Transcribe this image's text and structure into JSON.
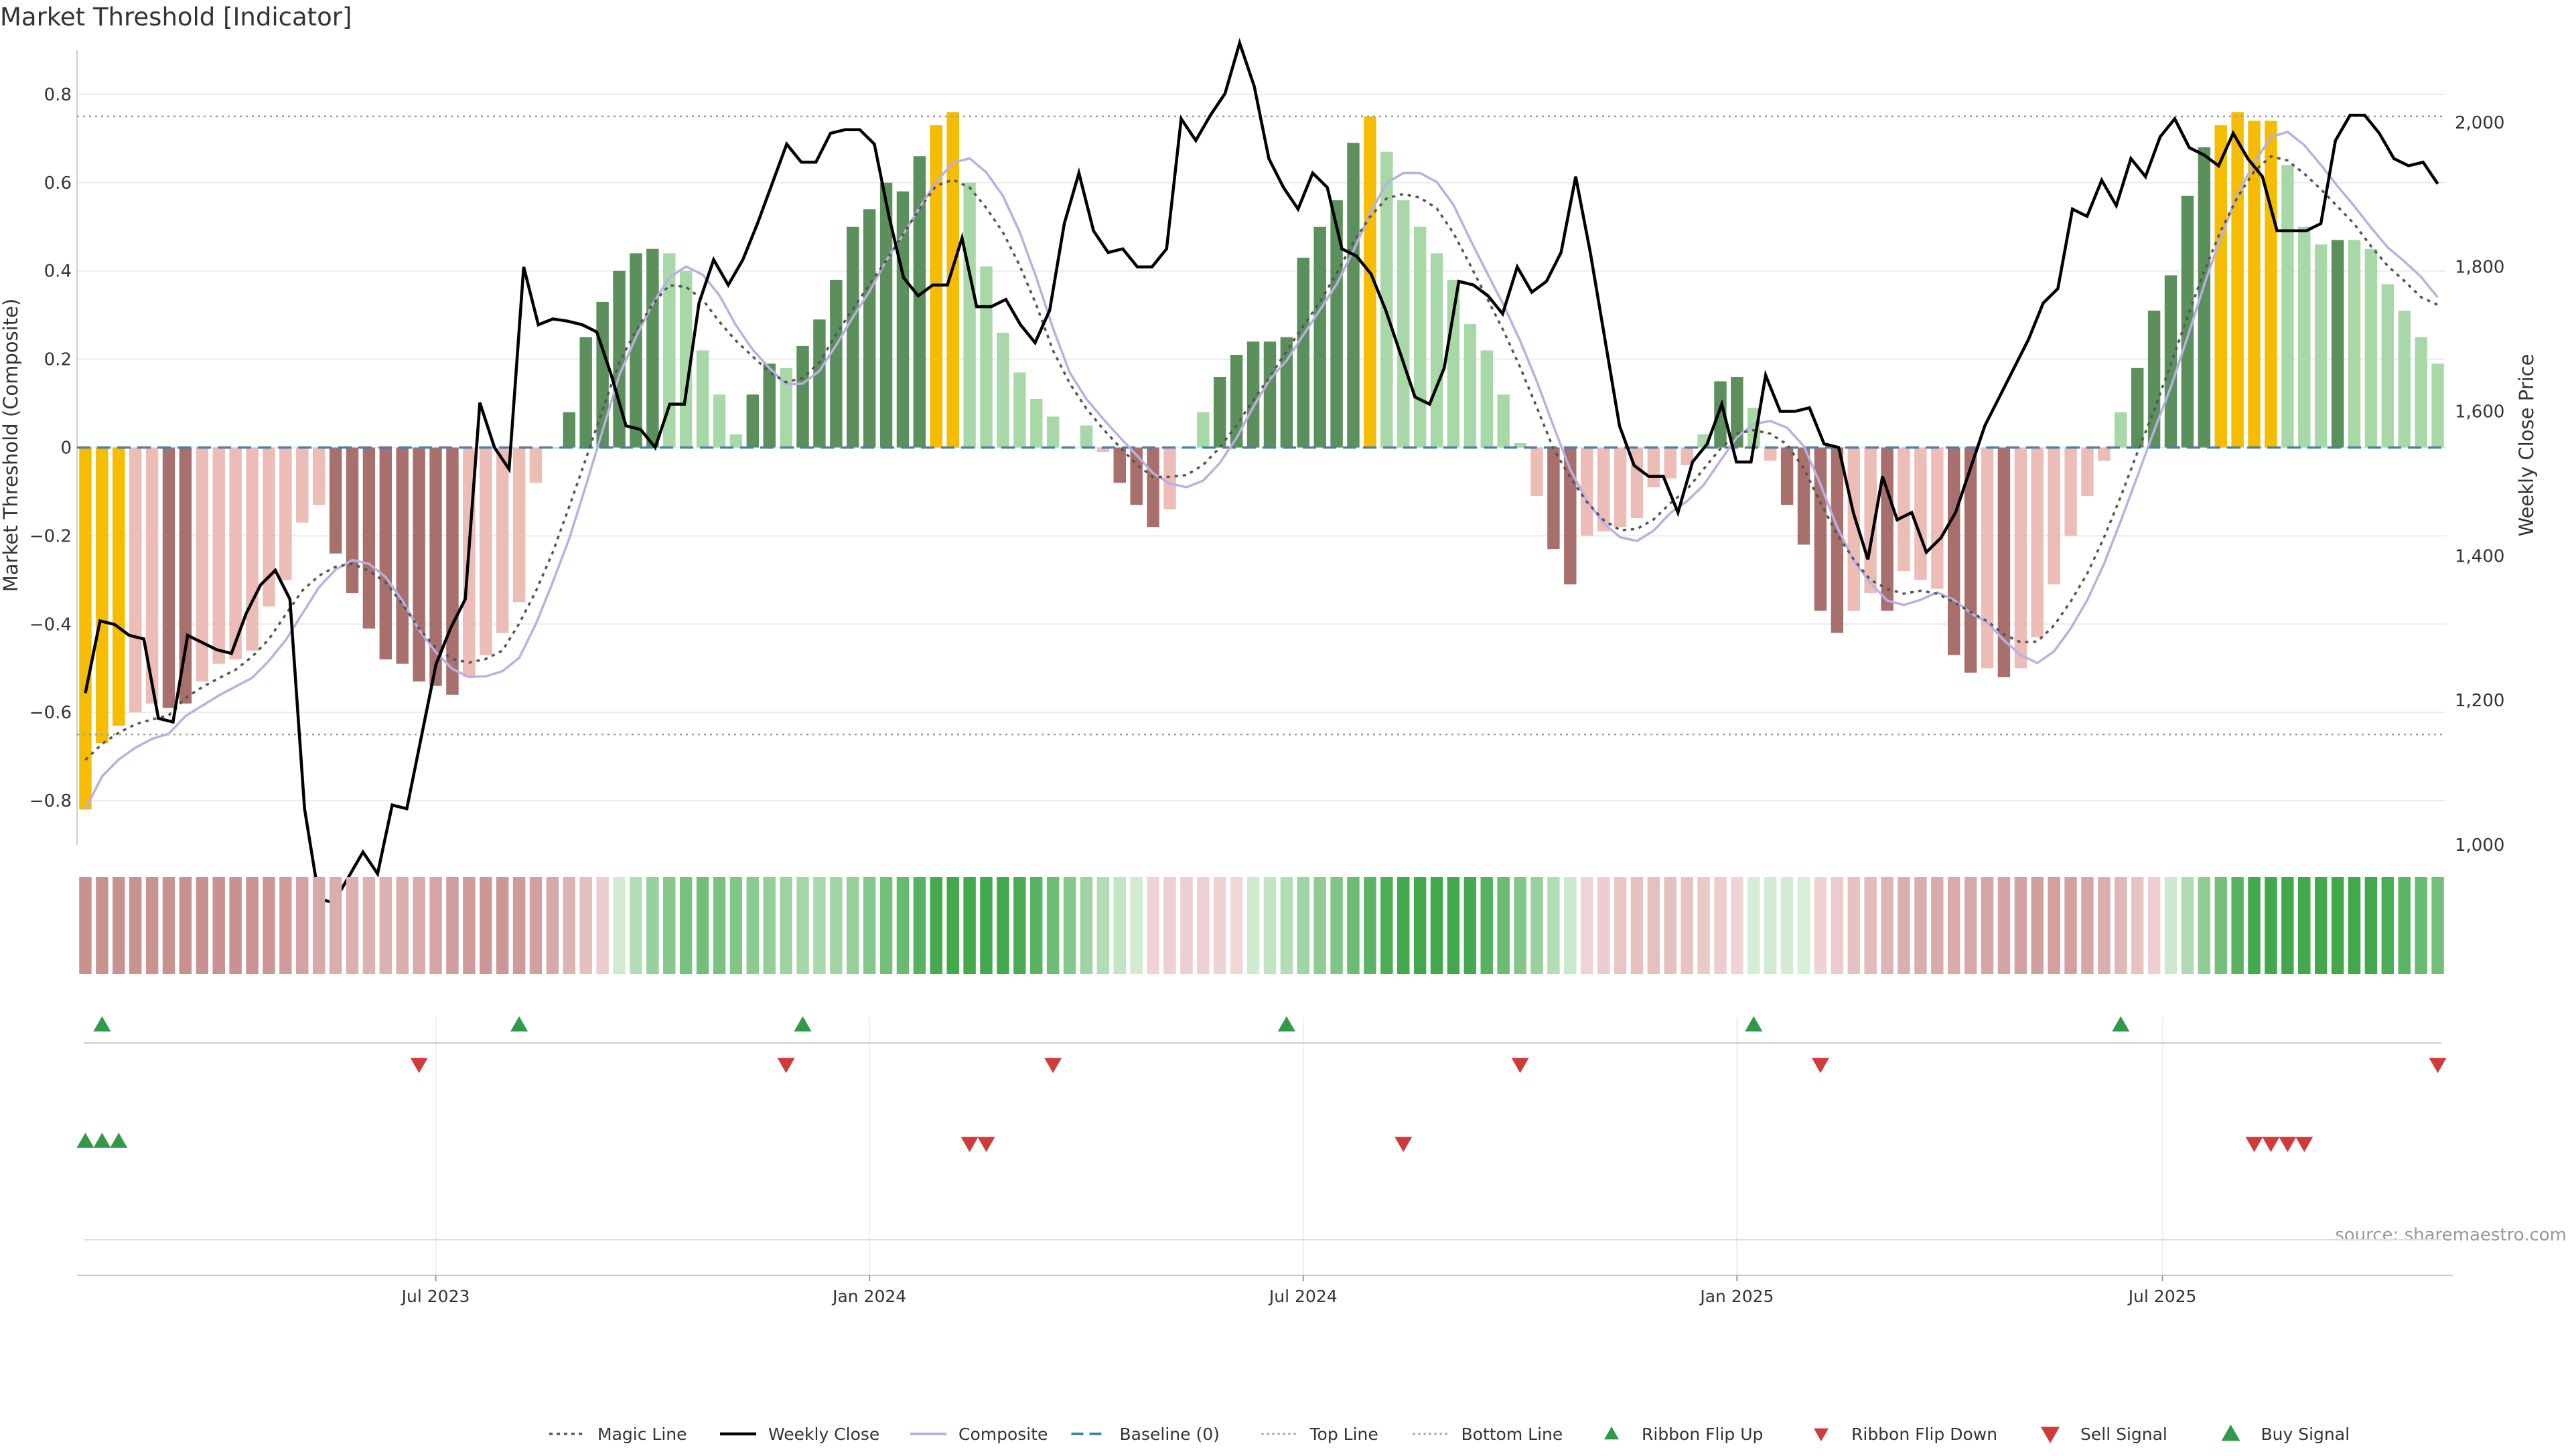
{
  "chart_data": {
    "type": "bar",
    "title": "Market Threshold [Indicator]",
    "ylabel_left": "Market Threshold (Composite)",
    "ylabel_right": "Weekly Close Price",
    "left_ylim": [
      -0.9,
      0.9
    ],
    "right_ylim": [
      1000,
      2100
    ],
    "left_ticks": [
      "0.8",
      "0.6",
      "0.4",
      "0.2",
      "0",
      "−0.2",
      "−0.4",
      "−0.6",
      "−0.8"
    ],
    "right_ticks": [
      "2,000",
      "1,800",
      "1,600",
      "1,400",
      "1,200",
      "1,000"
    ],
    "x_ticks": [
      "Jul 2023",
      "Jan 2024",
      "Jul 2024",
      "Jan 2025",
      "Jul 2025"
    ],
    "top_line": 0.75,
    "bottom_line": -0.65,
    "source": "source: sharemaestro.com",
    "grid": true,
    "legend_position": "bottom-center",
    "colors": {
      "strong_bull": "#5b8f5b",
      "weak_bull": "#a8d8a8",
      "strong_bear": "#a8706c",
      "weak_bear": "#ecbcb6",
      "extreme": "#f5bc00",
      "weekly_close": "#000000",
      "composite": "#b8b0e0",
      "magic_line": "#555555",
      "baseline": "#4a7fa8",
      "sell": "#d03a3a",
      "buy": "#2e9a4a"
    },
    "composite_bars": [
      {
        "v": -0.82,
        "c": "extreme"
      },
      {
        "v": -0.67,
        "c": "extreme"
      },
      {
        "v": -0.63,
        "c": "extreme"
      },
      {
        "v": -0.6,
        "c": "weak_bear"
      },
      {
        "v": -0.58,
        "c": "weak_bear"
      },
      {
        "v": -0.59,
        "c": "strong_bear"
      },
      {
        "v": -0.58,
        "c": "strong_bear"
      },
      {
        "v": -0.53,
        "c": "weak_bear"
      },
      {
        "v": -0.49,
        "c": "weak_bear"
      },
      {
        "v": -0.48,
        "c": "weak_bear"
      },
      {
        "v": -0.46,
        "c": "weak_bear"
      },
      {
        "v": -0.36,
        "c": "weak_bear"
      },
      {
        "v": -0.3,
        "c": "weak_bear"
      },
      {
        "v": -0.17,
        "c": "weak_bear"
      },
      {
        "v": -0.13,
        "c": "weak_bear"
      },
      {
        "v": -0.24,
        "c": "strong_bear"
      },
      {
        "v": -0.33,
        "c": "strong_bear"
      },
      {
        "v": -0.41,
        "c": "strong_bear"
      },
      {
        "v": -0.48,
        "c": "strong_bear"
      },
      {
        "v": -0.49,
        "c": "strong_bear"
      },
      {
        "v": -0.53,
        "c": "strong_bear"
      },
      {
        "v": -0.54,
        "c": "strong_bear"
      },
      {
        "v": -0.56,
        "c": "strong_bear"
      },
      {
        "v": -0.52,
        "c": "weak_bear"
      },
      {
        "v": -0.47,
        "c": "weak_bear"
      },
      {
        "v": -0.42,
        "c": "weak_bear"
      },
      {
        "v": -0.35,
        "c": "weak_bear"
      },
      {
        "v": -0.08,
        "c": "weak_bear"
      },
      {
        "v": 0.0,
        "c": "weak_bull"
      },
      {
        "v": 0.08,
        "c": "strong_bull"
      },
      {
        "v": 0.25,
        "c": "strong_bull"
      },
      {
        "v": 0.33,
        "c": "strong_bull"
      },
      {
        "v": 0.4,
        "c": "strong_bull"
      },
      {
        "v": 0.44,
        "c": "strong_bull"
      },
      {
        "v": 0.45,
        "c": "strong_bull"
      },
      {
        "v": 0.44,
        "c": "weak_bull"
      },
      {
        "v": 0.4,
        "c": "weak_bull"
      },
      {
        "v": 0.22,
        "c": "weak_bull"
      },
      {
        "v": 0.12,
        "c": "weak_bull"
      },
      {
        "v": 0.03,
        "c": "weak_bull"
      },
      {
        "v": 0.12,
        "c": "strong_bull"
      },
      {
        "v": 0.19,
        "c": "strong_bull"
      },
      {
        "v": 0.18,
        "c": "weak_bull"
      },
      {
        "v": 0.23,
        "c": "strong_bull"
      },
      {
        "v": 0.29,
        "c": "strong_bull"
      },
      {
        "v": 0.38,
        "c": "strong_bull"
      },
      {
        "v": 0.5,
        "c": "strong_bull"
      },
      {
        "v": 0.54,
        "c": "strong_bull"
      },
      {
        "v": 0.6,
        "c": "strong_bull"
      },
      {
        "v": 0.58,
        "c": "strong_bull"
      },
      {
        "v": 0.66,
        "c": "strong_bull"
      },
      {
        "v": 0.73,
        "c": "extreme"
      },
      {
        "v": 0.76,
        "c": "extreme"
      },
      {
        "v": 0.6,
        "c": "weak_bull"
      },
      {
        "v": 0.41,
        "c": "weak_bull"
      },
      {
        "v": 0.26,
        "c": "weak_bull"
      },
      {
        "v": 0.17,
        "c": "weak_bull"
      },
      {
        "v": 0.11,
        "c": "weak_bull"
      },
      {
        "v": 0.07,
        "c": "weak_bull"
      },
      {
        "v": 0.0,
        "c": "weak_bull"
      },
      {
        "v": 0.05,
        "c": "weak_bull"
      },
      {
        "v": -0.01,
        "c": "weak_bear"
      },
      {
        "v": -0.08,
        "c": "strong_bear"
      },
      {
        "v": -0.13,
        "c": "strong_bear"
      },
      {
        "v": -0.18,
        "c": "strong_bear"
      },
      {
        "v": -0.14,
        "c": "weak_bear"
      },
      {
        "v": 0.0,
        "c": "weak_bull"
      },
      {
        "v": 0.08,
        "c": "weak_bull"
      },
      {
        "v": 0.16,
        "c": "strong_bull"
      },
      {
        "v": 0.21,
        "c": "strong_bull"
      },
      {
        "v": 0.24,
        "c": "strong_bull"
      },
      {
        "v": 0.24,
        "c": "strong_bull"
      },
      {
        "v": 0.25,
        "c": "strong_bull"
      },
      {
        "v": 0.43,
        "c": "strong_bull"
      },
      {
        "v": 0.5,
        "c": "strong_bull"
      },
      {
        "v": 0.56,
        "c": "strong_bull"
      },
      {
        "v": 0.69,
        "c": "strong_bull"
      },
      {
        "v": 0.75,
        "c": "extreme"
      },
      {
        "v": 0.67,
        "c": "weak_bull"
      },
      {
        "v": 0.56,
        "c": "weak_bull"
      },
      {
        "v": 0.5,
        "c": "weak_bull"
      },
      {
        "v": 0.44,
        "c": "weak_bull"
      },
      {
        "v": 0.38,
        "c": "weak_bull"
      },
      {
        "v": 0.28,
        "c": "weak_bull"
      },
      {
        "v": 0.22,
        "c": "weak_bull"
      },
      {
        "v": 0.12,
        "c": "weak_bull"
      },
      {
        "v": 0.01,
        "c": "weak_bull"
      },
      {
        "v": -0.11,
        "c": "weak_bear"
      },
      {
        "v": -0.23,
        "c": "strong_bear"
      },
      {
        "v": -0.31,
        "c": "strong_bear"
      },
      {
        "v": -0.2,
        "c": "weak_bear"
      },
      {
        "v": -0.19,
        "c": "weak_bear"
      },
      {
        "v": -0.18,
        "c": "weak_bear"
      },
      {
        "v": -0.16,
        "c": "weak_bear"
      },
      {
        "v": -0.09,
        "c": "weak_bear"
      },
      {
        "v": -0.07,
        "c": "weak_bear"
      },
      {
        "v": -0.04,
        "c": "weak_bear"
      },
      {
        "v": 0.03,
        "c": "weak_bull"
      },
      {
        "v": 0.15,
        "c": "strong_bull"
      },
      {
        "v": 0.16,
        "c": "strong_bull"
      },
      {
        "v": 0.09,
        "c": "weak_bull"
      },
      {
        "v": -0.03,
        "c": "weak_bear"
      },
      {
        "v": -0.13,
        "c": "strong_bear"
      },
      {
        "v": -0.22,
        "c": "strong_bear"
      },
      {
        "v": -0.37,
        "c": "strong_bear"
      },
      {
        "v": -0.42,
        "c": "strong_bear"
      },
      {
        "v": -0.37,
        "c": "weak_bear"
      },
      {
        "v": -0.33,
        "c": "weak_bear"
      },
      {
        "v": -0.37,
        "c": "strong_bear"
      },
      {
        "v": -0.28,
        "c": "weak_bear"
      },
      {
        "v": -0.3,
        "c": "weak_bear"
      },
      {
        "v": -0.32,
        "c": "weak_bear"
      },
      {
        "v": -0.47,
        "c": "strong_bear"
      },
      {
        "v": -0.51,
        "c": "strong_bear"
      },
      {
        "v": -0.5,
        "c": "weak_bear"
      },
      {
        "v": -0.52,
        "c": "strong_bear"
      },
      {
        "v": -0.5,
        "c": "weak_bear"
      },
      {
        "v": -0.43,
        "c": "weak_bear"
      },
      {
        "v": -0.31,
        "c": "weak_bear"
      },
      {
        "v": -0.2,
        "c": "weak_bear"
      },
      {
        "v": -0.11,
        "c": "weak_bear"
      },
      {
        "v": -0.03,
        "c": "weak_bear"
      },
      {
        "v": 0.08,
        "c": "weak_bull"
      },
      {
        "v": 0.18,
        "c": "strong_bull"
      },
      {
        "v": 0.31,
        "c": "strong_bull"
      },
      {
        "v": 0.39,
        "c": "strong_bull"
      },
      {
        "v": 0.57,
        "c": "strong_bull"
      },
      {
        "v": 0.68,
        "c": "strong_bull"
      },
      {
        "v": 0.73,
        "c": "extreme"
      },
      {
        "v": 0.76,
        "c": "extreme"
      },
      {
        "v": 0.74,
        "c": "extreme"
      },
      {
        "v": 0.74,
        "c": "extreme"
      },
      {
        "v": 0.64,
        "c": "weak_bull"
      },
      {
        "v": 0.5,
        "c": "weak_bull"
      },
      {
        "v": 0.46,
        "c": "weak_bull"
      },
      {
        "v": 0.47,
        "c": "strong_bull"
      },
      {
        "v": 0.47,
        "c": "weak_bull"
      },
      {
        "v": 0.45,
        "c": "weak_bull"
      },
      {
        "v": 0.37,
        "c": "weak_bull"
      },
      {
        "v": 0.31,
        "c": "weak_bull"
      },
      {
        "v": 0.25,
        "c": "weak_bull"
      },
      {
        "v": 0.19,
        "c": "weak_bull"
      }
    ],
    "weekly_close": [
      1210,
      1310,
      1305,
      1290,
      1285,
      1175,
      1170,
      1290,
      1280,
      1270,
      1265,
      1320,
      1360,
      1380,
      1340,
      1050,
      925,
      920,
      955,
      990,
      960,
      1055,
      1050,
      1150,
      1250,
      1300,
      1340,
      1612,
      1550,
      1520,
      1800,
      1720,
      1728,
      1725,
      1720,
      1710,
      1650,
      1580,
      1575,
      1550,
      1610,
      1610,
      1750,
      1810,
      1775,
      1810,
      1860,
      1915,
      1970,
      1945,
      1945,
      1985,
      1990,
      1990,
      1970,
      1870,
      1785,
      1760,
      1775,
      1775,
      1840,
      1745,
      1745,
      1755,
      1720,
      1695,
      1740,
      1860,
      1930,
      1850,
      1820,
      1825,
      1800,
      1800,
      1825,
      2005,
      1975,
      2010,
      2040,
      2110,
      2050,
      1950,
      1910,
      1880,
      1930,
      1910,
      1825,
      1815,
      1790,
      1740,
      1680,
      1620,
      1610,
      1660,
      1780,
      1775,
      1760,
      1735,
      1800,
      1765,
      1780,
      1820,
      1925,
      1820,
      1700,
      1580,
      1525,
      1510,
      1510,
      1460,
      1530,
      1555,
      1610,
      1530,
      1530,
      1650,
      1600,
      1600,
      1605,
      1555,
      1550,
      1460,
      1395,
      1510,
      1450,
      1460,
      1405,
      1425,
      1460,
      1520,
      1580,
      1620,
      1660,
      1700,
      1750,
      1770,
      1880,
      1870,
      1920,
      1885,
      1950,
      1925,
      1980,
      2005,
      1965,
      1955,
      1940,
      1985,
      1950,
      1925,
      1850,
      1850,
      1850,
      1860,
      1975,
      2010,
      2010,
      1985,
      1950,
      1940,
      1945,
      1915
    ]
  },
  "legend": [
    {
      "key": "magic",
      "label": "Magic Line"
    },
    {
      "key": "close",
      "label": "Weekly Close"
    },
    {
      "key": "composite",
      "label": "Composite"
    },
    {
      "key": "baseline",
      "label": "Baseline (0)"
    },
    {
      "key": "top",
      "label": "Top Line"
    },
    {
      "key": "bottom",
      "label": "Bottom Line"
    },
    {
      "key": "flip_up",
      "label": "Ribbon Flip Up"
    },
    {
      "key": "flip_down",
      "label": "Ribbon Flip Down"
    },
    {
      "key": "sell",
      "label": "Sell Signal"
    },
    {
      "key": "buy",
      "label": "Buy Signal"
    }
  ]
}
